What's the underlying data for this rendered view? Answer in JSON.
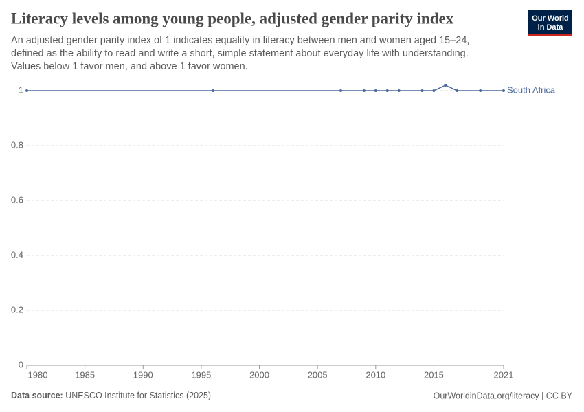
{
  "header": {
    "title": "Literacy levels among young people, adjusted gender parity index",
    "subtitle": [
      "An adjusted gender parity index of 1 indicates equality in literacy between men and women aged 15–24,",
      "defined as the ability to read and write a short, simple statement about everyday life with understanding.",
      "Values below 1 favor men, and above 1 favor women."
    ],
    "logo": [
      "Our World",
      "in Data"
    ]
  },
  "chart_data": {
    "type": "line",
    "x": [
      1980,
      1996,
      2007,
      2009,
      2010,
      2011,
      2012,
      2014,
      2015,
      2016,
      2017,
      2019,
      2021
    ],
    "series": [
      {
        "name": "South Africa",
        "color": "#4c6a9c",
        "values": [
          1,
          1,
          1,
          1,
          1,
          1,
          1,
          1,
          1,
          1.02,
          1,
          1,
          1
        ]
      }
    ],
    "xlim": [
      1980,
      2021
    ],
    "xticks": [
      1980,
      1985,
      1990,
      1995,
      2000,
      2005,
      2010,
      2015,
      2021
    ],
    "ylim": [
      0,
      1
    ],
    "yticks": [
      0,
      0.2,
      0.4,
      0.6,
      0.8,
      1
    ],
    "grid": true
  },
  "footer": {
    "source_label": "Data source:",
    "source": "UNESCO Institute for Statistics (2025)",
    "link": "OurWorldinData.org/literacy | CC BY"
  }
}
